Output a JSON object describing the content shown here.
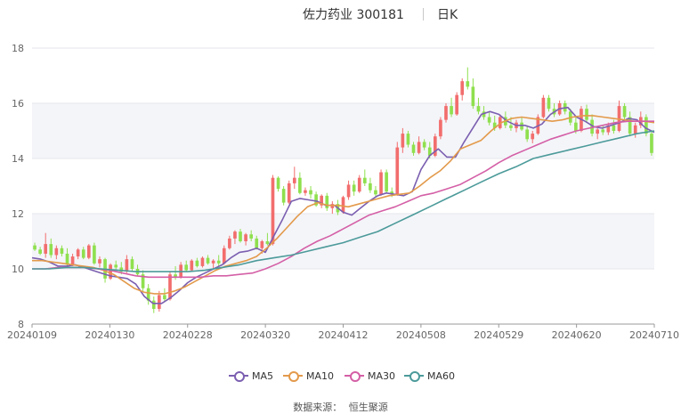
{
  "header": {
    "stock": "佐力药业 300181",
    "period": "日K"
  },
  "legend": [
    {
      "label": "MA5",
      "color": "#7b5fb0"
    },
    {
      "label": "MA10",
      "color": "#e39a4b"
    },
    {
      "label": "MA30",
      "color": "#d45fa6"
    },
    {
      "label": "MA60",
      "color": "#4c9a9a"
    }
  ],
  "source": {
    "label": "数据来源：",
    "value": "恒生聚源"
  },
  "chart_data": {
    "type": "candlestick",
    "x_tick_labels": [
      "20240109",
      "20240130",
      "20240228",
      "20240320",
      "20240412",
      "20240508",
      "20240529",
      "20240620",
      "20240710"
    ],
    "y_ticks": [
      8,
      10,
      12,
      14,
      16,
      18
    ],
    "ylim": [
      8,
      18
    ],
    "up_color": "#f26d6d",
    "down_color": "#8fe04e",
    "grid": true,
    "ohlc": [
      [
        10.85,
        10.95,
        10.65,
        10.7
      ],
      [
        10.7,
        10.8,
        10.5,
        10.55
      ],
      [
        10.55,
        11.3,
        10.4,
        10.9
      ],
      [
        10.9,
        11.1,
        10.4,
        10.5
      ],
      [
        10.5,
        10.85,
        10.35,
        10.75
      ],
      [
        10.75,
        10.85,
        10.45,
        10.55
      ],
      [
        10.55,
        10.75,
        10.05,
        10.15
      ],
      [
        10.15,
        10.55,
        10.1,
        10.45
      ],
      [
        10.45,
        10.75,
        10.35,
        10.7
      ],
      [
        10.7,
        10.8,
        10.35,
        10.4
      ],
      [
        10.4,
        10.9,
        10.35,
        10.85
      ],
      [
        10.85,
        10.95,
        10.15,
        10.2
      ],
      [
        10.2,
        10.45,
        10.05,
        10.35
      ],
      [
        10.35,
        10.4,
        9.5,
        9.65
      ],
      [
        9.65,
        10.2,
        9.6,
        10.15
      ],
      [
        10.15,
        10.3,
        9.95,
        10.05
      ],
      [
        10.05,
        10.25,
        9.8,
        9.9
      ],
      [
        9.9,
        10.5,
        9.85,
        10.35
      ],
      [
        10.35,
        10.45,
        9.9,
        10.0
      ],
      [
        10.0,
        10.15,
        9.75,
        9.8
      ],
      [
        9.8,
        9.95,
        9.2,
        9.3
      ],
      [
        9.3,
        9.45,
        8.7,
        8.85
      ],
      [
        8.85,
        9.0,
        8.4,
        8.55
      ],
      [
        8.55,
        9.2,
        8.45,
        9.05
      ],
      [
        9.05,
        9.3,
        8.8,
        8.9
      ],
      [
        8.9,
        9.9,
        8.85,
        9.8
      ],
      [
        9.8,
        10.1,
        9.6,
        9.7
      ],
      [
        9.7,
        10.25,
        9.65,
        10.15
      ],
      [
        10.15,
        10.3,
        9.9,
        9.95
      ],
      [
        9.95,
        10.35,
        9.9,
        10.3
      ],
      [
        10.3,
        10.4,
        10.05,
        10.1
      ],
      [
        10.1,
        10.45,
        10.05,
        10.4
      ],
      [
        10.4,
        10.5,
        10.15,
        10.2
      ],
      [
        10.2,
        10.35,
        10.0,
        10.3
      ],
      [
        10.3,
        10.5,
        10.1,
        10.2
      ],
      [
        10.2,
        10.85,
        10.15,
        10.75
      ],
      [
        10.75,
        11.2,
        10.7,
        11.1
      ],
      [
        11.1,
        11.4,
        10.9,
        11.35
      ],
      [
        11.35,
        11.45,
        10.95,
        11.0
      ],
      [
        11.0,
        11.3,
        10.85,
        11.25
      ],
      [
        11.25,
        11.4,
        11.0,
        11.1
      ],
      [
        11.1,
        11.2,
        10.7,
        10.75
      ],
      [
        10.75,
        11.05,
        10.55,
        11.0
      ],
      [
        11.0,
        11.3,
        10.85,
        10.9
      ],
      [
        10.9,
        13.4,
        10.85,
        13.3
      ],
      [
        13.3,
        13.35,
        12.8,
        12.9
      ],
      [
        12.9,
        13.0,
        12.3,
        12.4
      ],
      [
        12.4,
        13.2,
        12.35,
        13.1
      ],
      [
        13.1,
        13.7,
        12.9,
        13.3
      ],
      [
        13.3,
        13.5,
        12.7,
        12.75
      ],
      [
        12.75,
        12.95,
        12.65,
        12.85
      ],
      [
        12.85,
        13.0,
        12.55,
        12.7
      ],
      [
        12.7,
        12.8,
        12.25,
        12.3
      ],
      [
        12.3,
        12.7,
        12.2,
        12.65
      ],
      [
        12.65,
        12.75,
        12.1,
        12.2
      ],
      [
        12.2,
        12.45,
        12.0,
        12.35
      ],
      [
        12.35,
        12.5,
        11.95,
        12.05
      ],
      [
        12.05,
        12.65,
        12.0,
        12.6
      ],
      [
        12.6,
        13.2,
        12.5,
        13.05
      ],
      [
        13.05,
        13.2,
        12.65,
        12.8
      ],
      [
        12.8,
        13.4,
        12.75,
        13.3
      ],
      [
        13.3,
        13.6,
        13.0,
        13.1
      ],
      [
        13.1,
        13.3,
        12.75,
        12.85
      ],
      [
        12.85,
        13.0,
        12.6,
        12.7
      ],
      [
        12.7,
        13.6,
        12.65,
        13.5
      ],
      [
        13.5,
        13.6,
        12.75,
        12.8
      ],
      [
        12.8,
        12.95,
        12.6,
        12.7
      ],
      [
        12.7,
        14.6,
        12.65,
        14.4
      ],
      [
        14.4,
        15.1,
        14.2,
        14.9
      ],
      [
        14.9,
        15.0,
        14.4,
        14.5
      ],
      [
        14.5,
        14.6,
        14.1,
        14.2
      ],
      [
        14.2,
        14.8,
        14.15,
        14.6
      ],
      [
        14.6,
        14.7,
        14.3,
        14.4
      ],
      [
        14.4,
        14.6,
        14.0,
        14.1
      ],
      [
        14.1,
        14.9,
        14.05,
        14.8
      ],
      [
        14.8,
        15.5,
        14.7,
        15.4
      ],
      [
        15.4,
        16.0,
        15.3,
        15.9
      ],
      [
        15.9,
        16.2,
        15.5,
        15.6
      ],
      [
        15.6,
        16.4,
        15.55,
        16.3
      ],
      [
        16.3,
        16.9,
        16.1,
        16.8
      ],
      [
        16.8,
        17.3,
        16.5,
        16.6
      ],
      [
        16.6,
        16.9,
        15.8,
        15.9
      ],
      [
        15.9,
        16.2,
        15.6,
        15.7
      ],
      [
        15.7,
        15.9,
        15.4,
        15.5
      ],
      [
        15.5,
        15.7,
        15.2,
        15.3
      ],
      [
        15.3,
        15.55,
        15.0,
        15.1
      ],
      [
        15.1,
        15.6,
        15.05,
        15.5
      ],
      [
        15.5,
        15.7,
        15.1,
        15.2
      ],
      [
        15.2,
        15.5,
        15.0,
        15.1
      ],
      [
        15.1,
        15.4,
        14.95,
        15.3
      ],
      [
        15.3,
        15.5,
        15.0,
        15.05
      ],
      [
        15.05,
        15.2,
        14.6,
        14.7
      ],
      [
        14.7,
        15.0,
        14.55,
        14.9
      ],
      [
        14.9,
        15.6,
        14.85,
        15.5
      ],
      [
        15.5,
        16.3,
        15.45,
        16.2
      ],
      [
        16.2,
        16.3,
        15.7,
        15.8
      ],
      [
        15.8,
        16.0,
        15.5,
        15.6
      ],
      [
        15.6,
        16.1,
        15.55,
        16.0
      ],
      [
        16.0,
        16.1,
        15.6,
        15.7
      ],
      [
        15.7,
        15.8,
        15.2,
        15.3
      ],
      [
        15.3,
        15.5,
        14.9,
        15.0
      ],
      [
        15.0,
        15.9,
        14.95,
        15.8
      ],
      [
        15.8,
        15.95,
        15.3,
        15.4
      ],
      [
        15.4,
        15.6,
        14.8,
        14.9
      ],
      [
        14.9,
        15.1,
        14.7,
        15.05
      ],
      [
        15.05,
        15.2,
        14.85,
        14.95
      ],
      [
        14.95,
        15.3,
        14.85,
        15.2
      ],
      [
        15.2,
        15.4,
        14.9,
        15.0
      ],
      [
        15.0,
        16.1,
        14.95,
        15.9
      ],
      [
        15.9,
        16.0,
        15.4,
        15.5
      ],
      [
        15.5,
        15.7,
        14.8,
        14.9
      ],
      [
        14.9,
        15.3,
        14.75,
        15.2
      ],
      [
        15.2,
        15.7,
        15.1,
        15.5
      ],
      [
        15.5,
        15.6,
        14.8,
        14.9
      ],
      [
        14.9,
        15.0,
        14.1,
        14.2
      ]
    ],
    "series": [
      {
        "name": "MA5",
        "color": "#7b5fb0",
        "values": [
          10.4,
          10.35,
          10.25,
          10.1,
          10.1,
          10.15,
          10.05,
          9.95,
          9.85,
          9.75,
          9.7,
          9.65,
          9.45,
          9.0,
          8.75,
          8.75,
          8.95,
          9.2,
          9.5,
          9.7,
          9.85,
          10.0,
          10.15,
          10.4,
          10.6,
          10.65,
          10.75,
          10.6,
          11.2,
          11.8,
          12.45,
          12.55,
          12.5,
          12.45,
          12.3,
          12.3,
          12.05,
          11.95,
          12.2,
          12.45,
          12.65,
          12.75,
          12.7,
          12.65,
          12.8,
          13.6,
          14.1,
          14.35,
          14.05,
          14.05,
          14.6,
          15.1,
          15.6,
          15.7,
          15.6,
          15.35,
          15.2,
          15.2,
          15.1,
          15.25,
          15.6,
          15.8,
          15.85,
          15.5,
          15.35,
          15.15,
          15.1,
          15.2,
          15.3,
          15.45,
          15.4,
          15.1,
          14.95
        ]
      },
      {
        "name": "MA10",
        "color": "#e39a4b",
        "values": [
          10.3,
          10.3,
          10.25,
          10.2,
          10.15,
          10.1,
          10.05,
          9.95,
          9.8,
          9.55,
          9.3,
          9.15,
          9.1,
          9.1,
          9.2,
          9.35,
          9.55,
          9.75,
          9.95,
          10.1,
          10.2,
          10.3,
          10.45,
          10.75,
          11.1,
          11.5,
          11.9,
          12.25,
          12.4,
          12.3,
          12.3,
          12.25,
          12.35,
          12.45,
          12.55,
          12.65,
          12.7,
          12.75,
          13.0,
          13.3,
          13.55,
          13.9,
          14.35,
          14.5,
          14.65,
          15.0,
          15.3,
          15.45,
          15.5,
          15.45,
          15.4,
          15.35,
          15.4,
          15.5,
          15.55,
          15.55,
          15.5,
          15.45,
          15.4,
          15.35,
          15.35,
          15.3
        ]
      },
      {
        "name": "MA30",
        "color": "#d45fa6",
        "values": [
          10.0,
          10.0,
          10.05,
          10.05,
          10.05,
          10.0,
          9.95,
          9.85,
          9.75,
          9.7,
          9.7,
          9.7,
          9.7,
          9.7,
          9.75,
          9.75,
          9.8,
          9.85,
          10.0,
          10.2,
          10.45,
          10.75,
          11.0,
          11.2,
          11.45,
          11.7,
          11.95,
          12.1,
          12.25,
          12.45,
          12.65,
          12.75,
          12.9,
          13.05,
          13.3,
          13.55,
          13.85,
          14.1,
          14.3,
          14.5,
          14.7,
          14.85,
          15.0,
          15.1,
          15.2,
          15.3,
          15.35,
          15.35,
          15.35
        ]
      },
      {
        "name": "MA60",
        "color": "#4c9a9a",
        "values": [
          10.0,
          10.0,
          10.05,
          10.05,
          10.0,
          9.95,
          9.9,
          9.9,
          9.9,
          9.9,
          9.95,
          10.05,
          10.15,
          10.3,
          10.4,
          10.5,
          10.65,
          10.8,
          10.95,
          11.15,
          11.35,
          11.65,
          11.95,
          12.25,
          12.55,
          12.85,
          13.15,
          13.45,
          13.7,
          14.0,
          14.15,
          14.3,
          14.45,
          14.6,
          14.75,
          14.9,
          15.0
        ]
      }
    ]
  }
}
